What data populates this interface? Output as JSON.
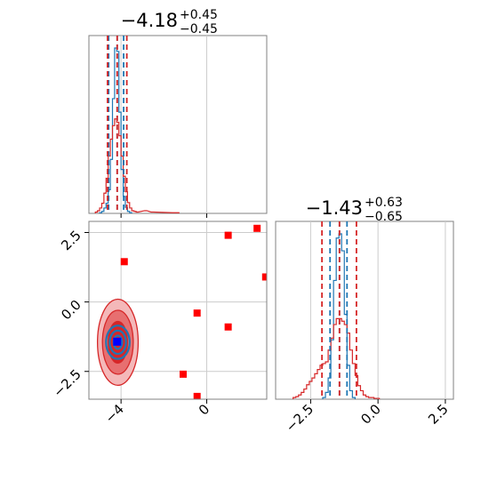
{
  "chart_data": {
    "type": "corner",
    "parameters": 2,
    "series": [
      {
        "name": "",
        "color": "#1f77b4",
        "style": "narrow posterior"
      },
      {
        "name": "",
        "color": "#d62728",
        "style": "broad posterior"
      }
    ],
    "panels": [
      {
        "id": "p1-marginal",
        "type": "histogram",
        "title_value": "−4.18",
        "title_plus": "+0.45",
        "title_minus": "−0.45",
        "xlim": [
          -5.5,
          2.8
        ],
        "x_ticks": [
          -4,
          0
        ],
        "grid": true,
        "quantile_lines": {
          "#1f77b4": [
            -4.58,
            -4.18,
            -3.88
          ],
          "#d62728": [
            -4.63,
            -4.18,
            -3.73
          ]
        },
        "series_bins": {
          "#1f77b4": {
            "x": [
              -4.95,
              -4.85,
              -4.75,
              -4.65,
              -4.55,
              -4.45,
              -4.35,
              -4.25,
              -4.15,
              -4.05,
              -3.95,
              -3.85,
              -3.75,
              -3.65,
              -3.55
            ],
            "counts": [
              1,
              3,
              8,
              15,
              35,
              80,
              170,
              245,
              240,
              150,
              65,
              25,
              9,
              3,
              1
            ]
          },
          "#d62728": {
            "x": [
              -5.15,
              -5.05,
              -4.95,
              -4.85,
              -4.75,
              -4.65,
              -4.55,
              -4.45,
              -4.35,
              -4.25,
              -4.15,
              -4.05,
              -3.95,
              -3.85,
              -3.75,
              -3.65,
              -3.55,
              -3.45,
              -3.35,
              -3.25,
              -2.85,
              -2.55,
              -1.55,
              -1.35
            ],
            "counts": [
              2,
              4,
              8,
              15,
              30,
              52,
              85,
              110,
              130,
              140,
              135,
              115,
              85,
              55,
              32,
              16,
              8,
              4,
              3,
              2,
              4,
              2,
              1,
              1
            ]
          }
        }
      },
      {
        "id": "p2-marginal",
        "type": "histogram",
        "title_value": "−1.43",
        "title_plus": "+0.63",
        "title_minus": "−0.65",
        "xlim": [
          -3.8,
          2.8
        ],
        "x_ticks": [
          -2.5,
          0.0,
          2.5
        ],
        "x_tick_labels": [
          "−2.5",
          "0.0",
          "2.5"
        ],
        "grid": true,
        "quantile_lines": {
          "#1f77b4": [
            -1.78,
            -1.43,
            -1.15
          ],
          "#d62728": [
            -2.08,
            -1.43,
            -0.8
          ]
        },
        "series_bins": {
          "#1f77b4": {
            "x": [
              -2.0,
              -1.9,
              -1.8,
              -1.7,
              -1.6,
              -1.5,
              -1.4,
              -1.3,
              -1.2,
              -1.1,
              -1.0,
              -0.9
            ],
            "counts": [
              2,
              8,
              25,
              70,
              140,
              190,
              195,
              175,
              100,
              40,
              10,
              2
            ]
          },
          "#d62728": {
            "x": [
              -3.1,
              -3.0,
              -2.9,
              -2.8,
              -2.7,
              -2.6,
              -2.5,
              -2.4,
              -2.3,
              -2.2,
              -2.1,
              -2.0,
              -1.9,
              -1.8,
              -1.7,
              -1.6,
              -1.5,
              -1.4,
              -1.3,
              -1.2,
              -1.1,
              -1.0,
              -0.9,
              -0.8,
              -0.7,
              -0.6,
              -0.5,
              -0.4,
              -0.3,
              -0.2,
              -0.1,
              0.0
            ],
            "counts": [
              2,
              3,
              5,
              8,
              12,
              17,
              21,
              25,
              30,
              35,
              40,
              42,
              44,
              58,
              72,
              88,
              95,
              95,
              92,
              88,
              78,
              58,
              42,
              28,
              16,
              10,
              5,
              3,
              2,
              2,
              1,
              1
            ]
          }
        }
      },
      {
        "id": "p1-p2-joint",
        "type": "contour",
        "xlim": [
          -5.5,
          2.8
        ],
        "ylim": [
          -3.5,
          2.9
        ],
        "x_ticks": [
          -4,
          0
        ],
        "y_ticks": [
          -2.5,
          0.0,
          2.5
        ],
        "y_tick_labels": [
          "−2.5",
          "0.0",
          "2.5"
        ],
        "grid": true,
        "contours": {
          "#d62728": {
            "center": [
              -4.15,
              -1.45
            ],
            "levels": [
              {
                "rx": 0.95,
                "ry": 1.55,
                "fill": "#f4b8b9"
              },
              {
                "rx": 0.72,
                "ry": 1.15,
                "fill": "#e76f70"
              },
              {
                "rx": 0.45,
                "ry": 0.75,
                "fill": "#d62728"
              }
            ]
          },
          "#1f77b4": {
            "center": [
              -4.15,
              -1.45
            ],
            "levels": [
              {
                "rx": 0.55,
                "ry": 0.6
              },
              {
                "rx": 0.38,
                "ry": 0.42
              },
              {
                "rx": 0.2,
                "ry": 0.24
              }
            ]
          }
        },
        "outlier_points": {
          "color": "#ff0000",
          "points": [
            [
              -3.85,
              1.45
            ],
            [
              1.0,
              2.4
            ],
            [
              2.35,
              2.65
            ],
            [
              2.75,
              0.9
            ],
            [
              -0.45,
              -0.4
            ],
            [
              1.0,
              -0.9
            ],
            [
              -1.1,
              -2.6
            ],
            [
              -0.45,
              -3.4
            ]
          ]
        },
        "highlight_point": {
          "x": -4.18,
          "y": -1.43,
          "color": "#0000ff"
        }
      }
    ]
  }
}
